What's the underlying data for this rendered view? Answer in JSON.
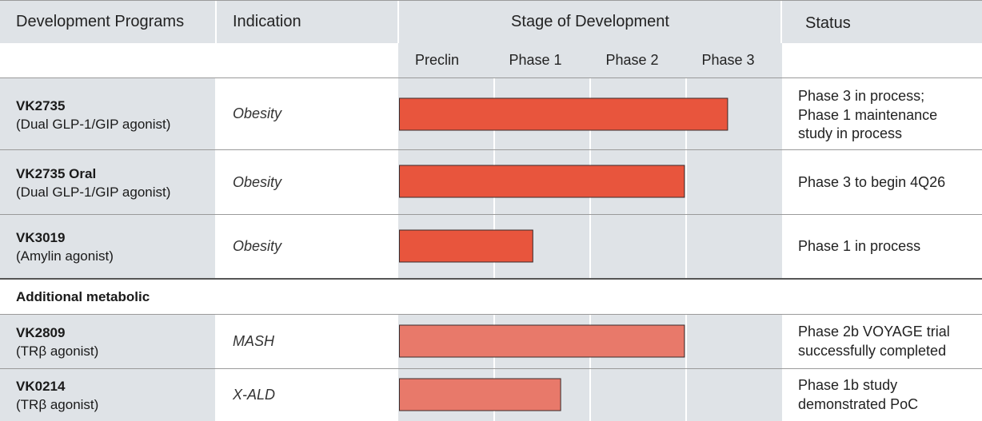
{
  "headers": {
    "programs": "Development Programs",
    "indication": "Indication",
    "stage": "Stage of Development",
    "status": "Status"
  },
  "phases": [
    "Preclin",
    "Phase 1",
    "Phase 2",
    "Phase 3"
  ],
  "group_label": "Additional metabolic",
  "rows": [
    {
      "name": "VK2735",
      "mechanism": "(Dual GLP-1/GIP agonist)",
      "indication": "Obesity",
      "status": [
        "Phase 3 in process;",
        "Phase 1 maintenance",
        "study in process"
      ]
    },
    {
      "name": "VK2735 Oral",
      "mechanism": "(Dual GLP-1/GIP agonist)",
      "indication": "Obesity",
      "status": [
        "Phase 3 to begin 4Q26"
      ]
    },
    {
      "name": "VK3019",
      "mechanism": "(Amylin agonist)",
      "indication": "Obesity",
      "status": [
        "Phase 1 in process"
      ]
    },
    {
      "name": "VK2809",
      "mechanism": "(TRβ agonist)",
      "indication": "MASH",
      "status": [
        "Phase 2b VOYAGE trial",
        "successfully completed"
      ]
    },
    {
      "name": "VK0214",
      "mechanism": "(TRβ agonist)",
      "indication": "X-ALD",
      "status": [
        "Phase 1b study",
        "demonstrated PoC"
      ]
    }
  ],
  "chart_data": {
    "type": "bar",
    "orientation": "horizontal",
    "categories": [
      "VK2735",
      "VK2735 Oral",
      "VK3019",
      "VK2809",
      "VK0214"
    ],
    "x_categories": [
      "Preclin",
      "Phase 1",
      "Phase 2",
      "Phase 3"
    ],
    "values": [
      3.42,
      2.97,
      1.39,
      2.97,
      1.68
    ],
    "xlim": [
      0,
      4
    ],
    "colors": [
      "#e8553d",
      "#e8553d",
      "#e8553d",
      "#e8796a",
      "#e8796a"
    ],
    "grid": true
  }
}
